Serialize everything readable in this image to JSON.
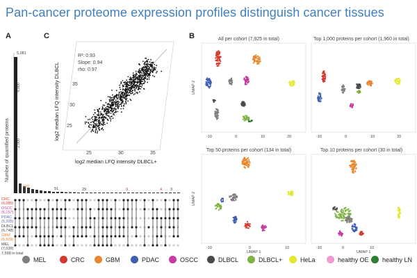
{
  "title": "Pan-cancer proteome expression profiles distinguish cancer tissues",
  "panels": {
    "a": {
      "letter": "A",
      "ylabel": "Number of quantified proteins",
      "top_value": "5,081",
      "ytick1": "4,000",
      "ytick2": "2,000",
      "bar_labels": [
        "107",
        "51",
        "29",
        "9",
        "4",
        "3"
      ],
      "rows": [
        {
          "name": "CRC",
          "count": "(6,085)",
          "color": "#d23a2e"
        },
        {
          "name": "OSCC",
          "count": "(6,157)",
          "color": "#c43ba0"
        },
        {
          "name": "PDAC",
          "count": "(6,335)",
          "color": "#5b6bb5"
        },
        {
          "name": "DLBCL",
          "count": "(6,748)",
          "color": "#6b6b6b"
        },
        {
          "name": "GBM",
          "count": "(6,929)",
          "color": "#e8872e"
        },
        {
          "name": "MEL",
          "count": "(7,039)",
          "color": "#6b6b6b"
        }
      ],
      "total": "7,598 in total"
    },
    "c": {
      "letter": "C",
      "stats": [
        "R²: 0.93",
        "Slope: 0.94",
        "rho: 0.97"
      ],
      "ylabel": "log2 median LFQ intensity DLBCL",
      "xlabel": "log2 median LFQ intensity DLBCL+",
      "xticks": [
        "25",
        "30",
        "35"
      ],
      "yticks": [
        "25",
        "30",
        "35"
      ]
    },
    "b": {
      "letter": "B",
      "subplots": [
        {
          "title": "All per cohort (7,925 in total)",
          "xticks": [
            "-10",
            "0",
            "10",
            "20"
          ],
          "ylabel": "UMAP 2",
          "xlabel": ""
        },
        {
          "title": "Top 1,000 proteins per cohort (1,960 in total)",
          "xticks": [
            "-10",
            "0",
            "10",
            "20"
          ],
          "ylabel": "",
          "xlabel": ""
        },
        {
          "title": "Top 50 proteins per cohort (134 in total)",
          "xticks": [
            "-10",
            "0",
            "10"
          ],
          "ylabel": "UMAP 2",
          "xlabel": "UMAP 1"
        },
        {
          "title": "Top 10 proteins per cohort (30 in total)",
          "xticks": [
            "-10",
            "0",
            "10"
          ],
          "ylabel": "",
          "xlabel": "UMAP 1"
        }
      ]
    }
  },
  "legend": [
    {
      "label": "MEL",
      "color": "#7f7f7f"
    },
    {
      "label": "CRC",
      "color": "#d23a2e"
    },
    {
      "label": "GBM",
      "color": "#e8872e"
    },
    {
      "label": "PDAC",
      "color": "#3f5fb0"
    },
    {
      "label": "OSCC",
      "color": "#c43ba0"
    },
    {
      "label": "DLBCL",
      "color": "#4a4a4a"
    },
    {
      "label": "DLBCL+",
      "color": "#7cb342"
    },
    {
      "label": "HeLa",
      "color": "#e5e832"
    },
    {
      "label": "healthy OE",
      "color": "#f19ad0"
    },
    {
      "label": "healthy LN",
      "color": "#2e7d32"
    }
  ]
}
